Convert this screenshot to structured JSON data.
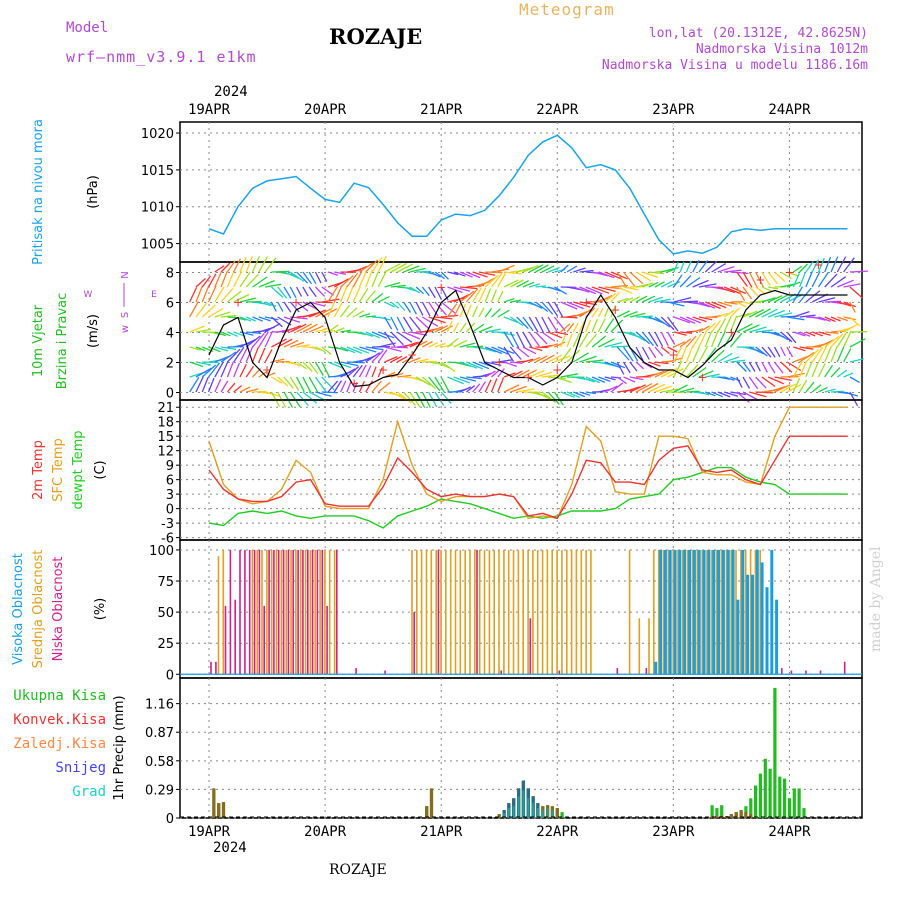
{
  "header": {
    "model_label": "Model",
    "model_name": "wrf—nmm_v3.9.1  e1km",
    "title": "ROZAJE",
    "meteogram": "Meteogram",
    "lonlat": "lon,lat (20.1312E, 42.8625N)",
    "altitude": "Nadmorska Visina 1012m",
    "model_altitude": "Nadmorska Visina u modelu 1186.16m",
    "credit": "made by Angel",
    "footer_title": "ROZAJE",
    "year_top": "2024",
    "year_bottom": "2024"
  },
  "colors": {
    "pressure": "#1aa3e6",
    "temp2m": "#ee3333",
    "sfc": "#e0a020",
    "dewpt": "#22cc22",
    "high_cloud": "#1a9ee0",
    "mid_cloud": "#e0a020",
    "low_cloud": "#d0208a",
    "total_precip": "#22bb22",
    "conv_precip": "#ee3333",
    "frozen": "#ff8844",
    "snow": "#4444ee",
    "hail": "#22cccc"
  },
  "chart_data": [
    {
      "type": "line",
      "panel": "pressure",
      "ylabels": [
        "Pritisak na nivou mora",
        "(hPa)"
      ],
      "y_ticks": [
        1005,
        1010,
        1015,
        1020
      ],
      "ylim": [
        1002.5,
        1021.5
      ],
      "x_ticks": [
        "19APR",
        "20APR",
        "21APR",
        "22APR",
        "23APR",
        "24APR"
      ],
      "grid": true,
      "series": [
        {
          "key": "pressure",
          "t": [
            0,
            3,
            6,
            9,
            12,
            15,
            18,
            21,
            24,
            27,
            30,
            33,
            36,
            39,
            42,
            45,
            48,
            51,
            54,
            57,
            60,
            63,
            66,
            69,
            72,
            75,
            78,
            81,
            84,
            87,
            90,
            93,
            96,
            99,
            102,
            105,
            108,
            111,
            114,
            117,
            120,
            123,
            126,
            129,
            132
          ],
          "values": [
            1007.0,
            1006.3,
            1010.0,
            1012.5,
            1013.5,
            1013.8,
            1014.1,
            1012.5,
            1011.0,
            1010.6,
            1013.2,
            1012.6,
            1010.3,
            1007.8,
            1006.0,
            1006.0,
            1008.2,
            1009.0,
            1008.8,
            1009.5,
            1011.5,
            1014.0,
            1017.0,
            1018.8,
            1019.7,
            1018.0,
            1015.3,
            1015.7,
            1015.0,
            1012.5,
            1009.0,
            1005.5,
            1003.6,
            1004.0,
            1003.7,
            1004.5,
            1006.6,
            1007.0,
            1006.8,
            1007.0,
            1007.0,
            1007.0,
            1007.0,
            1007.0,
            1007.0
          ]
        }
      ]
    },
    {
      "type": "line",
      "panel": "wind",
      "ylabels": [
        "10m Vjetar",
        "Brzina i Pravac",
        "(m/s)"
      ],
      "compass": [
        "N",
        "S",
        "W",
        "E"
      ],
      "y_ticks": [
        0,
        2,
        4,
        6,
        8
      ],
      "ylim": [
        -0.5,
        8.7
      ],
      "grid": true,
      "series": [
        {
          "key": "speed_line",
          "t": [
            0,
            3,
            6,
            9,
            12,
            15,
            18,
            21,
            24,
            27,
            30,
            33,
            36,
            39,
            42,
            45,
            48,
            51,
            54,
            57,
            60,
            63,
            66,
            69,
            72,
            75,
            78,
            81,
            84,
            87,
            90,
            93,
            96,
            99,
            102,
            105,
            108,
            111,
            114,
            117,
            120,
            123,
            126,
            129,
            132
          ],
          "values": [
            2.5,
            4.5,
            5.0,
            2.0,
            1.0,
            3.5,
            5.5,
            6.0,
            5.0,
            2.0,
            0.4,
            0.5,
            1.0,
            1.2,
            2.5,
            4.0,
            6.0,
            6.8,
            4.5,
            2.0,
            1.5,
            1.0,
            1.0,
            0.5,
            1.0,
            2.0,
            5.0,
            6.5,
            5.0,
            3.0,
            2.0,
            1.5,
            1.5,
            1.0,
            1.8,
            2.8,
            3.5,
            5.5,
            6.5,
            6.8,
            6.5,
            6.5,
            6.5,
            6.5,
            6.5
          ]
        },
        {
          "key": "gust_plus",
          "t": [
            6,
            12,
            18,
            30,
            36,
            42,
            48,
            60,
            66,
            72,
            78,
            84,
            96,
            102,
            108,
            114,
            120,
            126
          ],
          "values": [
            6.0,
            1.5,
            6.0,
            0.6,
            1.5,
            2.5,
            7.0,
            2.0,
            1.0,
            1.5,
            6.0,
            5.5,
            2.5,
            1.0,
            4.0,
            7.5,
            8.0,
            8.5
          ]
        }
      ]
    },
    {
      "type": "line",
      "panel": "temperature",
      "ylabels": [
        "2m Temp",
        "SFC Temp",
        "dewpt Temp",
        "(C)"
      ],
      "y_ticks": [
        -6,
        -3,
        0,
        3,
        6,
        9,
        12,
        15,
        18,
        21
      ],
      "ylim": [
        -6.5,
        22.5
      ],
      "grid": true,
      "series": [
        {
          "key": "temp2m",
          "t": [
            0,
            3,
            6,
            9,
            12,
            15,
            18,
            21,
            24,
            27,
            30,
            33,
            36,
            39,
            42,
            45,
            48,
            51,
            54,
            57,
            60,
            63,
            66,
            69,
            72,
            75,
            78,
            81,
            84,
            87,
            90,
            93,
            96,
            99,
            102,
            105,
            108,
            111,
            114,
            117,
            120,
            123,
            126,
            129,
            132
          ],
          "values": [
            8.0,
            4.0,
            2.0,
            1.5,
            1.5,
            2.5,
            5.5,
            6.0,
            1.0,
            0.5,
            0.5,
            0.5,
            4.5,
            10.5,
            7.5,
            4.0,
            2.5,
            3.0,
            2.5,
            2.5,
            3.0,
            2.5,
            -1.5,
            -1.0,
            -2.0,
            3.0,
            10.0,
            9.5,
            5.5,
            5.5,
            5.0,
            10.0,
            12.5,
            13.0,
            8.0,
            7.5,
            8.0,
            6.0,
            5.0,
            10.0,
            15.0,
            15.0,
            15.0,
            15.0,
            15.0
          ]
        },
        {
          "key": "sfc",
          "t": [
            0,
            3,
            6,
            9,
            12,
            15,
            18,
            21,
            24,
            27,
            30,
            33,
            36,
            39,
            42,
            45,
            48,
            51,
            54,
            57,
            60,
            63,
            66,
            69,
            72,
            75,
            78,
            81,
            84,
            87,
            90,
            93,
            96,
            99,
            102,
            105,
            108,
            111,
            114,
            117,
            120,
            123,
            126,
            129,
            132
          ],
          "values": [
            14.0,
            5.0,
            2.0,
            1.0,
            1.5,
            4.0,
            10.0,
            7.5,
            0.5,
            0.0,
            0.0,
            0.0,
            6.0,
            18.0,
            9.0,
            3.0,
            1.5,
            2.5,
            2.5,
            2.5,
            3.0,
            2.5,
            -2.0,
            -1.5,
            -2.0,
            5.0,
            17.0,
            14.0,
            3.5,
            3.0,
            3.0,
            15.0,
            15.0,
            14.5,
            7.5,
            7.0,
            7.0,
            5.5,
            5.0,
            15.0,
            21.0,
            21.0,
            21.0,
            21.0,
            21.0
          ]
        },
        {
          "key": "dewpt",
          "t": [
            0,
            3,
            6,
            9,
            12,
            15,
            18,
            21,
            24,
            27,
            30,
            33,
            36,
            39,
            42,
            45,
            48,
            51,
            54,
            57,
            60,
            63,
            66,
            69,
            72,
            75,
            78,
            81,
            84,
            87,
            90,
            93,
            96,
            99,
            102,
            105,
            108,
            111,
            114,
            117,
            120,
            123,
            126,
            129,
            132
          ],
          "values": [
            -3.0,
            -3.5,
            -1.0,
            -0.5,
            -1.0,
            -0.5,
            -1.5,
            -2.0,
            -1.5,
            -1.5,
            -1.5,
            -2.5,
            -4.0,
            -1.5,
            -0.5,
            0.5,
            2.0,
            1.5,
            1.0,
            0.0,
            -1.0,
            -2.0,
            -1.5,
            -2.0,
            -1.5,
            -0.5,
            -0.5,
            -0.5,
            0.0,
            2.0,
            2.5,
            3.0,
            6.0,
            6.5,
            7.5,
            8.5,
            8.5,
            6.5,
            5.5,
            5.0,
            3.0,
            3.0,
            3.0,
            3.0,
            3.0
          ]
        }
      ]
    },
    {
      "type": "bar",
      "panel": "cloud",
      "ylabels": [
        "Visoka Oblacnost",
        "Srednja Oblacnost",
        "Niska Oblacnost",
        "(%)"
      ],
      "y_ticks": [
        0,
        25,
        50,
        75,
        100
      ],
      "ylim": [
        -3,
        108
      ],
      "grid": true,
      "low_cloud": {
        "t": [
          0,
          1,
          3,
          4,
          5,
          6,
          7,
          8,
          9,
          10,
          11,
          12,
          13,
          14,
          15,
          16,
          17,
          18,
          19,
          20,
          21,
          22,
          23,
          24,
          25,
          26,
          30,
          36,
          42,
          47,
          55,
          60,
          66,
          72,
          84,
          90,
          96,
          108,
          114,
          118,
          120,
          123,
          126,
          131
        ],
        "values": [
          10,
          10,
          55,
          100,
          60,
          100,
          100,
          100,
          100,
          100,
          55,
          100,
          100,
          100,
          100,
          100,
          100,
          100,
          100,
          100,
          100,
          100,
          100,
          55,
          0,
          100,
          5,
          3,
          50,
          100,
          100,
          3,
          45,
          3,
          5,
          5,
          5,
          3,
          3,
          5,
          3,
          3,
          3,
          10
        ]
      },
      "mid_cloud": {
        "t": [
          2,
          3,
          9,
          10,
          11,
          12,
          13,
          14,
          15,
          16,
          17,
          18,
          19,
          20,
          21,
          22,
          23,
          24,
          25,
          26,
          42,
          43,
          44,
          45,
          46,
          47,
          48,
          49,
          50,
          51,
          52,
          53,
          54,
          55,
          56,
          57,
          58,
          59,
          60,
          61,
          62,
          63,
          64,
          65,
          66,
          67,
          68,
          69,
          70,
          71,
          72,
          73,
          74,
          75,
          76,
          77,
          78,
          79,
          87,
          89,
          91,
          92,
          93,
          94,
          95,
          96,
          97,
          98,
          99,
          100,
          101,
          102,
          103,
          104,
          105,
          106,
          107,
          108,
          109,
          110,
          111,
          112,
          113,
          114
        ],
        "values": [
          95,
          100,
          100,
          100,
          100,
          100,
          100,
          100,
          100,
          100,
          100,
          100,
          100,
          100,
          100,
          100,
          100,
          100,
          100,
          100,
          100,
          100,
          100,
          100,
          100,
          100,
          100,
          100,
          100,
          100,
          100,
          100,
          100,
          100,
          100,
          100,
          100,
          100,
          100,
          100,
          100,
          100,
          100,
          100,
          100,
          100,
          100,
          100,
          100,
          100,
          100,
          100,
          100,
          100,
          100,
          100,
          100,
          100,
          100,
          45,
          45,
          100,
          100,
          100,
          100,
          100,
          100,
          100,
          100,
          100,
          100,
          100,
          100,
          100,
          100,
          100,
          100,
          100,
          100,
          100,
          100,
          100,
          100,
          100
        ]
      },
      "high_cloud": {
        "t": [
          92,
          93,
          94,
          95,
          96,
          97,
          98,
          99,
          100,
          101,
          102,
          103,
          104,
          105,
          106,
          107,
          108,
          109,
          110,
          111,
          112,
          113,
          114,
          115,
          116,
          117
        ],
        "values": [
          10,
          100,
          100,
          100,
          100,
          100,
          100,
          100,
          100,
          100,
          100,
          100,
          100,
          100,
          100,
          100,
          100,
          60,
          100,
          80,
          80,
          100,
          90,
          70,
          100,
          60
        ]
      }
    },
    {
      "type": "bar",
      "panel": "precip",
      "ylabels": [
        "1hr Precip (mm)"
      ],
      "legend": [
        "Ukupna Kisa",
        "Konvek.Kisa",
        "Zaledj.Kisa",
        "Snijeg",
        "Grad"
      ],
      "y_ticks": [
        0,
        0.29,
        0.58,
        0.87,
        1.16
      ],
      "ylim": [
        0,
        1.42
      ],
      "x_ticks": [
        "19APR",
        "20APR",
        "21APR",
        "22APR",
        "23APR",
        "24APR"
      ],
      "grid": true,
      "total": {
        "t": [
          1,
          2,
          3,
          45,
          46,
          60,
          61,
          62,
          63,
          64,
          65,
          66,
          67,
          68,
          69,
          70,
          71,
          72,
          73,
          104,
          105,
          106,
          107,
          108,
          109,
          110,
          111,
          112,
          113,
          114,
          115,
          116,
          117,
          118,
          119,
          120,
          121,
          122,
          123
        ],
        "values": [
          0.3,
          0.15,
          0.16,
          0.12,
          0.3,
          0.04,
          0.08,
          0.15,
          0.2,
          0.3,
          0.38,
          0.3,
          0.22,
          0.15,
          0.12,
          0.13,
          0.12,
          0.1,
          0.06,
          0.13,
          0.1,
          0.13,
          0.02,
          0.04,
          0.06,
          0.08,
          0.12,
          0.2,
          0.33,
          0.45,
          0.6,
          0.5,
          1.32,
          0.42,
          0.4,
          0.2,
          0.3,
          0.3,
          0.1
        ]
      },
      "convective": {
        "t": [
          1,
          2,
          3,
          45,
          46,
          60,
          61,
          62,
          63,
          64,
          65,
          66,
          67,
          68,
          69,
          70,
          71,
          72,
          104,
          105,
          106,
          107,
          108,
          109,
          110,
          111,
          112
        ],
        "values": [
          0.3,
          0.15,
          0.16,
          0.12,
          0.3,
          0.04,
          0.08,
          0.15,
          0.2,
          0.3,
          0.38,
          0.3,
          0.22,
          0.15,
          0.12,
          0.13,
          0.12,
          0.1,
          0.02,
          0.02,
          0.02,
          0.02,
          0.04,
          0.06,
          0.08,
          0.06,
          0.04
        ]
      },
      "snow": {
        "t": [
          61,
          62,
          63,
          64,
          65,
          66,
          67,
          68
        ],
        "values": [
          0.08,
          0.15,
          0.2,
          0.3,
          0.38,
          0.3,
          0.22,
          0.15
        ]
      },
      "hail": {
        "t": [
          61,
          62,
          63,
          64,
          65,
          66,
          67,
          68,
          69,
          70,
          71
        ],
        "values": [
          0.05,
          0.1,
          0.12,
          0.22,
          0.28,
          0.2,
          0.15,
          0.1,
          0.08,
          0.1,
          0.08
        ]
      }
    }
  ]
}
